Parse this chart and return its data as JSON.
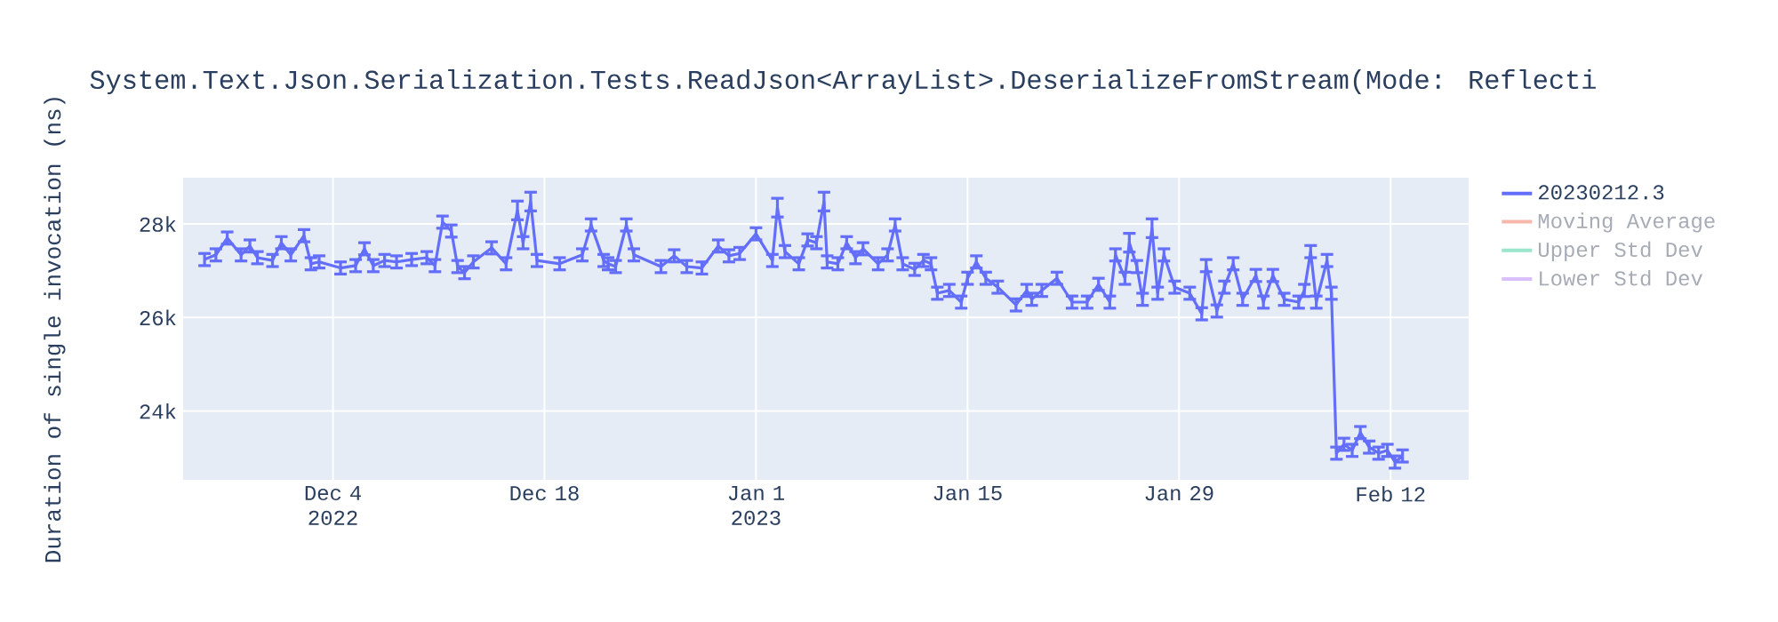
{
  "chart_data": {
    "type": "line",
    "title": "System.Text.Json.Serialization.Tests.ReadJson<ArrayList>.DeserializeFromStream(Mode: Reflecti",
    "ylabel": "Duration of single invocation (ns)",
    "xlim": [
      "2022-11-24T02:00",
      "2023-02-17T04:00"
    ],
    "xticks": [
      {
        "value": "2022-12-04",
        "label": "Dec 4 2022"
      },
      {
        "value": "2022-12-18",
        "label": "Dec 18"
      },
      {
        "value": "2023-01-01",
        "label": "Jan 1 2023"
      },
      {
        "value": "2023-01-15",
        "label": "Jan 15"
      },
      {
        "value": "2023-01-29",
        "label": "Jan 29"
      },
      {
        "value": "2023-02-12",
        "label": "Feb 12"
      }
    ],
    "ylim": [
      22530,
      28990
    ],
    "yticks": [
      {
        "value": 24000,
        "label": "24k"
      },
      {
        "value": 26000,
        "label": "26k"
      },
      {
        "value": 28000,
        "label": "28k"
      }
    ],
    "grid": true,
    "legend": "right",
    "x": [
      "2022-11-25T12:00",
      "2022-11-26T06:00",
      "2022-11-27T00:00",
      "2022-11-27T22:00",
      "2022-11-28T12:00",
      "2022-11-29T00:00",
      "2022-11-30T00:00",
      "2022-11-30T14:00",
      "2022-12-01T05:00",
      "2022-12-02T02:00",
      "2022-12-02T13:00",
      "2022-12-03T02:00",
      "2022-12-04T12:00",
      "2022-12-05T12:00",
      "2022-12-06T02:00",
      "2022-12-06T16:00",
      "2022-12-07T10:00",
      "2022-12-08T05:00",
      "2022-12-09T05:00",
      "2022-12-10T05:00",
      "2022-12-10T18:00",
      "2022-12-11T06:00",
      "2022-12-11T20:00",
      "2022-12-12T06:00",
      "2022-12-12T17:00",
      "2022-12-13T07:00",
      "2022-12-14T12:00",
      "2022-12-15T11:00",
      "2022-12-16T05:00",
      "2022-12-16T14:00",
      "2022-12-17T02:00",
      "2022-12-17T12:00",
      "2022-12-19T00:00",
      "2022-12-20T12:00",
      "2022-12-21T02:00",
      "2022-12-21T22:00",
      "2022-12-22T05:00",
      "2022-12-22T17:00",
      "2022-12-23T10:00",
      "2022-12-23T22:00",
      "2022-12-25T17:00",
      "2022-12-26T14:00",
      "2022-12-27T10:00",
      "2022-12-28T10:00",
      "2022-12-29T12:00",
      "2022-12-30T05:00",
      "2022-12-30T22:00",
      "2023-01-01T00:00",
      "2023-01-02T02:00",
      "2023-01-02T10:00",
      "2023-01-02T22:00",
      "2023-01-03T20:00",
      "2023-01-04T10:00",
      "2023-01-05T00:00",
      "2023-01-05T12:00",
      "2023-01-05T17:00",
      "2023-01-06T10:00",
      "2023-01-07T00:00",
      "2023-01-07T14:00",
      "2023-01-08T02:00",
      "2023-01-09T02:00",
      "2023-01-09T17:00",
      "2023-01-10T05:00",
      "2023-01-10T17:00",
      "2023-01-11T12:00",
      "2023-01-12T02:00",
      "2023-01-12T14:00",
      "2023-01-13T00:00",
      "2023-01-13T19:00",
      "2023-01-14T14:00",
      "2023-01-15T00:00",
      "2023-01-15T14:00",
      "2023-01-16T05:00",
      "2023-01-17T00:00",
      "2023-01-18T05:00",
      "2023-01-18T22:00",
      "2023-01-19T06:00",
      "2023-01-19T22:00",
      "2023-01-20T22:00",
      "2023-01-21T22:00",
      "2023-01-22T22:00",
      "2023-01-23T16:00",
      "2023-01-24T10:00",
      "2023-01-24T19:00",
      "2023-01-25T10:00",
      "2023-01-25T17:00",
      "2023-01-26T05:00",
      "2023-01-26T14:00",
      "2023-01-27T05:00",
      "2023-01-27T14:00",
      "2023-01-28T00:00",
      "2023-01-28T17:00",
      "2023-01-29T17:00",
      "2023-01-30T12:00",
      "2023-01-30T19:00",
      "2023-01-31T12:00",
      "2023-02-01T00:00",
      "2023-02-01T14:00",
      "2023-02-02T05:00",
      "2023-02-03T02:00",
      "2023-02-03T14:00",
      "2023-02-04T05:00",
      "2023-02-04T23:00",
      "2023-02-05T22:00",
      "2023-02-06T07:00",
      "2023-02-06T17:00",
      "2023-02-07T02:00",
      "2023-02-07T19:00",
      "2023-02-08T02:00",
      "2023-02-08T10:00",
      "2023-02-08T22:00",
      "2023-02-09T11:00",
      "2023-02-10T00:00",
      "2023-02-10T14:00",
      "2023-02-11T05:00",
      "2023-02-11T19:00",
      "2023-02-12T07:00",
      "2023-02-12T19:00"
    ],
    "series": [
      {
        "name": "20230212.3",
        "color": "#636efa",
        "values": [
          27240,
          27340,
          27700,
          27340,
          27530,
          27280,
          27220,
          27600,
          27340,
          27750,
          27150,
          27190,
          27060,
          27110,
          27470,
          27110,
          27220,
          27190,
          27240,
          27280,
          27110,
          28040,
          27850,
          27090,
          26960,
          27190,
          27490,
          27150,
          28290,
          27600,
          28480,
          27220,
          27150,
          27340,
          27980,
          27220,
          27150,
          27090,
          27980,
          27340,
          27090,
          27320,
          27090,
          27060,
          27530,
          27320,
          27370,
          27790,
          27220,
          28350,
          27410,
          27150,
          27660,
          27600,
          28480,
          27190,
          27150,
          27600,
          27280,
          27470,
          27150,
          27340,
          27980,
          27150,
          27030,
          27220,
          27150,
          26520,
          26580,
          26330,
          26840,
          27190,
          26840,
          26650,
          26270,
          26580,
          26390,
          26580,
          26840,
          26330,
          26330,
          26710,
          26330,
          27340,
          26840,
          27600,
          27090,
          26390,
          27910,
          26520,
          27340,
          26650,
          26520,
          26080,
          27110,
          26140,
          26650,
          27150,
          26390,
          26900,
          26330,
          26900,
          26390,
          26330,
          26580,
          27410,
          26330,
          27220,
          26520,
          23100,
          23290,
          23160,
          23540,
          23230,
          23100,
          23160,
          22910,
          23040
        ],
        "errors": [
          130,
          130,
          130,
          130,
          130,
          130,
          130,
          130,
          130,
          130,
          130,
          130,
          130,
          130,
          130,
          130,
          130,
          130,
          130,
          130,
          130,
          130,
          130,
          130,
          130,
          130,
          130,
          130,
          200,
          130,
          200,
          130,
          130,
          130,
          130,
          130,
          130,
          130,
          130,
          130,
          130,
          130,
          130,
          130,
          130,
          130,
          130,
          130,
          130,
          200,
          130,
          130,
          130,
          130,
          200,
          130,
          130,
          130,
          130,
          130,
          130,
          130,
          130,
          130,
          130,
          130,
          130,
          130,
          130,
          130,
          130,
          130,
          130,
          130,
          130,
          130,
          130,
          130,
          130,
          130,
          130,
          130,
          130,
          130,
          130,
          200,
          130,
          130,
          200,
          130,
          130,
          130,
          130,
          130,
          130,
          130,
          130,
          130,
          130,
          130,
          130,
          130,
          130,
          130,
          130,
          130,
          130,
          130,
          130,
          130,
          130,
          130,
          130,
          130,
          130,
          130,
          130,
          130
        ]
      },
      {
        "name": "Moving Average",
        "color": "#f7b8ab",
        "values": [
          null,
          null,
          null,
          null,
          null,
          null,
          null,
          null,
          null,
          null,
          null,
          null,
          null,
          null,
          null,
          null,
          null,
          null,
          null,
          null,
          null,
          null,
          null,
          null,
          null,
          null,
          null,
          null,
          null,
          null,
          null,
          null,
          null,
          null,
          null,
          null,
          null,
          null,
          null,
          null,
          null,
          null,
          null,
          null,
          null,
          null,
          null,
          null,
          null,
          null,
          null,
          null,
          null,
          null,
          null,
          null,
          null,
          null,
          null,
          null,
          null,
          null,
          null,
          null,
          null,
          null,
          null,
          null,
          null,
          null,
          null,
          null,
          null,
          null,
          null,
          null,
          null,
          null,
          null,
          null,
          null,
          null,
          null,
          null,
          null,
          null,
          null,
          null,
          null,
          null,
          null,
          null,
          null,
          null,
          null,
          null,
          null,
          null,
          null,
          null,
          null,
          null,
          null,
          null,
          null,
          null,
          null,
          null,
          null,
          null,
          null,
          null,
          null,
          null,
          null,
          null,
          null,
          null
        ]
      },
      {
        "name": "Upper Std Dev",
        "color": "#99e6cd",
        "values": [
          null,
          null,
          null,
          null,
          null,
          null,
          null,
          null,
          null,
          null,
          null,
          null,
          null,
          null,
          null,
          null,
          null,
          null,
          null,
          null,
          null,
          null,
          null,
          null,
          null,
          null,
          null,
          null,
          null,
          null,
          null,
          null,
          null,
          null,
          null,
          null,
          null,
          null,
          null,
          null,
          null,
          null,
          null,
          null,
          null,
          null,
          null,
          null,
          null,
          null,
          null,
          null,
          null,
          null,
          null,
          null,
          null,
          null,
          null,
          null,
          null,
          null,
          null,
          null,
          null,
          null,
          null,
          null,
          null,
          null,
          null,
          null,
          null,
          null,
          null,
          null,
          null,
          null,
          null,
          null,
          null,
          null,
          null,
          null,
          null,
          null,
          null,
          null,
          null,
          null,
          null,
          null,
          null,
          null,
          null,
          null,
          null,
          null,
          null,
          null,
          null,
          null,
          null,
          null,
          null,
          null,
          null,
          null,
          null,
          null,
          null,
          null,
          null,
          null,
          null,
          null,
          null,
          null
        ]
      },
      {
        "name": "Lower Std Dev",
        "color": "#d9bffc",
        "values": [
          null,
          null,
          null,
          null,
          null,
          null,
          null,
          null,
          null,
          null,
          null,
          null,
          null,
          null,
          null,
          null,
          null,
          null,
          null,
          null,
          null,
          null,
          null,
          null,
          null,
          null,
          null,
          null,
          null,
          null,
          null,
          null,
          null,
          null,
          null,
          null,
          null,
          null,
          null,
          null,
          null,
          null,
          null,
          null,
          null,
          null,
          null,
          null,
          null,
          null,
          null,
          null,
          null,
          null,
          null,
          null,
          null,
          null,
          null,
          null,
          null,
          null,
          null,
          null,
          null,
          null,
          null,
          null,
          null,
          null,
          null,
          null,
          null,
          null,
          null,
          null,
          null,
          null,
          null,
          null,
          null,
          null,
          null,
          null,
          null,
          null,
          null,
          null,
          null,
          null,
          null,
          null,
          null,
          null,
          null,
          null,
          null,
          null,
          null,
          null,
          null,
          null,
          null,
          null,
          null,
          null,
          null,
          null,
          null,
          null,
          null,
          null,
          null,
          null,
          null,
          null,
          null,
          null
        ]
      }
    ]
  }
}
